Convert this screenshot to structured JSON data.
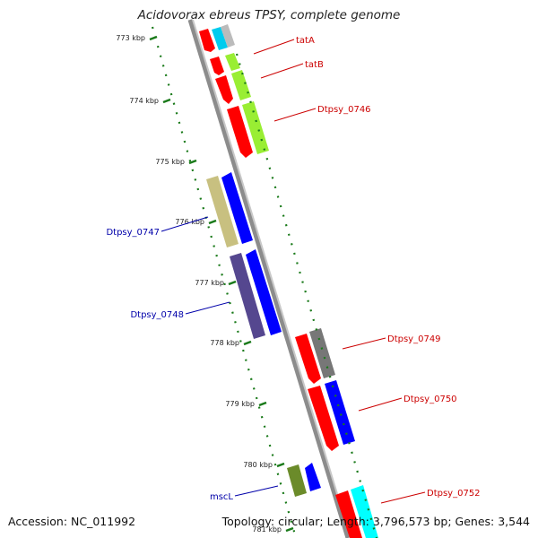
{
  "title": "Acidovorax ebreus TPSY, complete genome",
  "footer": {
    "accession": "Accession: NC_011992",
    "topology": "Topology: circular; Length: 3,796,573 bp; Genes: 3,544"
  },
  "ticks": [
    "773 kbp",
    "774 kbp",
    "775 kbp",
    "776 kbp",
    "777 kbp",
    "778 kbp",
    "779 kbp",
    "780 kbp",
    "781 kbp"
  ],
  "gene_labels": [
    {
      "text": "tatA",
      "side": "right",
      "color": "#cc0000"
    },
    {
      "text": "tatB",
      "side": "right",
      "color": "#cc0000"
    },
    {
      "text": "Dtpsy_0746",
      "side": "right",
      "color": "#cc0000"
    },
    {
      "text": "Dtpsy_0747",
      "side": "left",
      "color": "#0000aa"
    },
    {
      "text": "Dtpsy_0748",
      "side": "left",
      "color": "#0000aa"
    },
    {
      "text": "Dtpsy_0749",
      "side": "right",
      "color": "#cc0000"
    },
    {
      "text": "Dtpsy_0750",
      "side": "right",
      "color": "#cc0000"
    },
    {
      "text": "mscL",
      "side": "left",
      "color": "#0000aa"
    },
    {
      "text": "Dtpsy_0752",
      "side": "right",
      "color": "#cc0000"
    }
  ],
  "colors": {
    "backbone": "#8c8c8c",
    "tick": "#1a7a1a",
    "forward_cds": "#ff0000",
    "reverse_cds": "#0000ff",
    "forward_label": "#cc0000",
    "reverse_label": "#0000aa"
  }
}
